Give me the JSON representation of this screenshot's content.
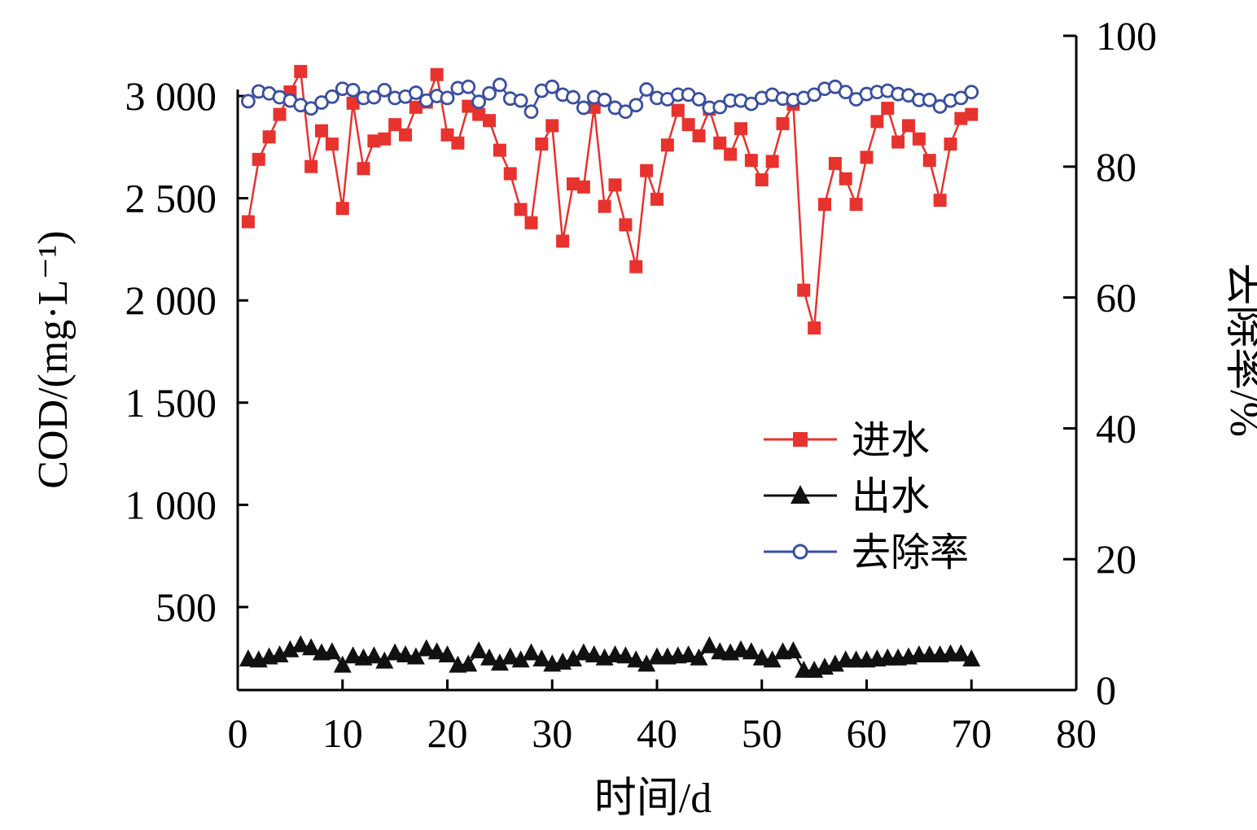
{
  "chart_data": {
    "type": "line",
    "xlabel": "时间/d",
    "ylabel_left": "COD/(mg·L⁻¹)",
    "ylabel_right": "去除率/%",
    "xlim": [
      0,
      80
    ],
    "ylim_left": [
      0,
      3200
    ],
    "ylim_right": [
      0,
      100
    ],
    "x_ticks": [
      "0",
      "10",
      "20",
      "30",
      "40",
      "50",
      "60",
      "70",
      "80"
    ],
    "y_left_ticks": [
      "500",
      "1 000",
      "1 500",
      "2 000",
      "2 500",
      "3 000"
    ],
    "y_right_ticks": [
      "0",
      "20",
      "40",
      "60",
      "80",
      "100"
    ],
    "grid": false,
    "legend_position": "center-right",
    "x": [
      1,
      2,
      3,
      4,
      5,
      6,
      7,
      8,
      9,
      10,
      11,
      12,
      13,
      14,
      15,
      16,
      17,
      18,
      19,
      20,
      21,
      22,
      23,
      24,
      25,
      26,
      27,
      28,
      29,
      30,
      31,
      32,
      33,
      34,
      35,
      36,
      37,
      38,
      39,
      40,
      41,
      42,
      43,
      44,
      45,
      46,
      47,
      48,
      49,
      50,
      51,
      52,
      53,
      54,
      55,
      56,
      57,
      58,
      59,
      60,
      61,
      62,
      63,
      64,
      65,
      66,
      67,
      68,
      69,
      70
    ],
    "series": [
      {
        "name": "进水",
        "axis": "left",
        "color": "#e8322d",
        "marker": "square",
        "values": [
          2385,
          2690,
          2800,
          2910,
          3020,
          3120,
          2655,
          2830,
          2765,
          2450,
          2965,
          2645,
          2780,
          2790,
          2860,
          2810,
          2945,
          2970,
          3105,
          2810,
          2770,
          2950,
          2910,
          2880,
          2735,
          2620,
          2445,
          2380,
          2765,
          2855,
          2290,
          2570,
          2555,
          2945,
          2460,
          2565,
          2370,
          2165,
          2635,
          2495,
          2760,
          2930,
          2860,
          2805,
          2935,
          2770,
          2715,
          2840,
          2685,
          2590,
          2680,
          2865,
          2960,
          2050,
          1865,
          2470,
          2670,
          2595,
          2470,
          2700,
          2875,
          2940,
          2775,
          2855,
          2790,
          2685,
          2490,
          2765,
          2890,
          2910
        ]
      },
      {
        "name": "出水",
        "axis": "left",
        "color": "#111111",
        "marker": "triangle",
        "values": [
          245,
          240,
          255,
          265,
          290,
          315,
          300,
          275,
          280,
          215,
          260,
          250,
          260,
          235,
          275,
          265,
          255,
          295,
          280,
          265,
          215,
          220,
          285,
          250,
          225,
          255,
          240,
          275,
          245,
          220,
          230,
          245,
          275,
          265,
          250,
          265,
          260,
          240,
          220,
          255,
          255,
          260,
          265,
          250,
          310,
          280,
          275,
          290,
          280,
          250,
          240,
          280,
          285,
          190,
          190,
          205,
          220,
          240,
          240,
          240,
          245,
          250,
          250,
          255,
          265,
          265,
          265,
          270,
          270,
          245
        ]
      },
      {
        "name": "去除率",
        "axis": "right",
        "color": "#3a4fa0",
        "marker": "circle",
        "values": [
          90,
          91.5,
          91.2,
          90.6,
          90.1,
          89.4,
          88.9,
          89.8,
          90.7,
          91.9,
          91.7,
          90.5,
          90.6,
          91.7,
          90.5,
          90.7,
          91.3,
          90.1,
          90.8,
          90.5,
          92,
          92.2,
          89.9,
          91.2,
          92.5,
          90.4,
          90.1,
          88.4,
          91.6,
          92.2,
          91,
          90.6,
          89,
          90.6,
          90.2,
          89,
          88.4,
          89.4,
          91.8,
          90.5,
          90.3,
          91,
          91,
          90.3,
          89,
          89.1,
          90.1,
          90.1,
          89.6,
          90.5,
          91,
          90.4,
          90.2,
          90.5,
          91,
          91.9,
          92.2,
          91.4,
          90.3,
          91.1,
          91.4,
          91.6,
          91.1,
          90.9,
          90.2,
          90.2,
          89.2,
          90.1,
          90.5,
          91.4
        ]
      }
    ]
  }
}
